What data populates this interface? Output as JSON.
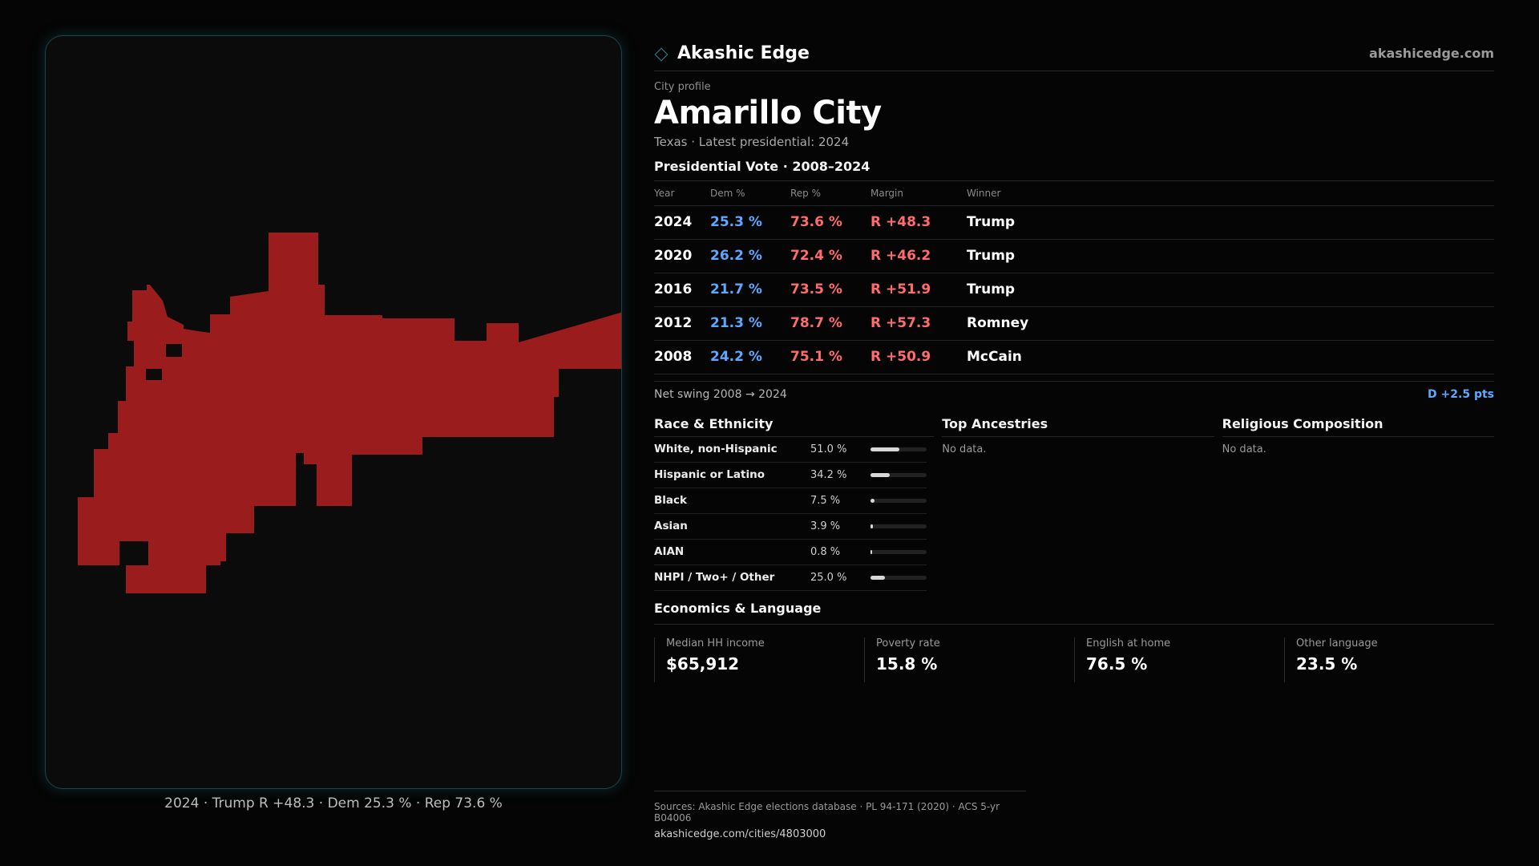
{
  "brand": {
    "name": "Akashic Edge",
    "domain": "akashicedge.com"
  },
  "profile": {
    "eyebrow": "City profile",
    "city": "Amarillo City",
    "subtitle": "Texas · Latest presidential: 2024"
  },
  "map": {
    "caption": "2024 · Trump R +48.3 · Dem 25.3 % · Rep 73.6 %",
    "fill_color": "#9a1c1c"
  },
  "votes": {
    "title": "Presidential Vote · 2008–2024",
    "headers": {
      "year": "Year",
      "dem": "Dem %",
      "rep": "Rep %",
      "margin": "Margin",
      "winner": "Winner"
    },
    "rows": [
      {
        "year": "2024",
        "dem": "25.3 %",
        "rep": "73.6 %",
        "margin": "R +48.3",
        "winner": "Trump"
      },
      {
        "year": "2020",
        "dem": "26.2 %",
        "rep": "72.4 %",
        "margin": "R +46.2",
        "winner": "Trump"
      },
      {
        "year": "2016",
        "dem": "21.7 %",
        "rep": "73.5 %",
        "margin": "R +51.9",
        "winner": "Trump"
      },
      {
        "year": "2012",
        "dem": "21.3 %",
        "rep": "78.7 %",
        "margin": "R +57.3",
        "winner": "Romney"
      },
      {
        "year": "2008",
        "dem": "24.2 %",
        "rep": "75.1 %",
        "margin": "R +50.9",
        "winner": "McCain"
      }
    ],
    "swing_label": "Net swing 2008 → 2024",
    "swing_value": "D +2.5 pts"
  },
  "race": {
    "title": "Race & Ethnicity",
    "rows": [
      {
        "label": "White, non-Hispanic",
        "value": "51.0 %",
        "fraction": 0.51
      },
      {
        "label": "Hispanic or Latino",
        "value": "34.2 %",
        "fraction": 0.342
      },
      {
        "label": "Black",
        "value": "7.5 %",
        "fraction": 0.075
      },
      {
        "label": "Asian",
        "value": "3.9 %",
        "fraction": 0.039
      },
      {
        "label": "AIAN",
        "value": "0.8 %",
        "fraction": 0.008
      },
      {
        "label": "NHPI / Two+ / Other",
        "value": "25.0 %",
        "fraction": 0.25
      }
    ]
  },
  "ancestries": {
    "title": "Top Ancestries",
    "empty": "No data."
  },
  "religion": {
    "title": "Religious Composition",
    "empty": "No data."
  },
  "economics": {
    "title": "Economics & Language",
    "cells": [
      {
        "label": "Median HH income",
        "value": "$65,912"
      },
      {
        "label": "Poverty rate",
        "value": "15.8 %"
      },
      {
        "label": "English at home",
        "value": "76.5 %"
      },
      {
        "label": "Other language",
        "value": "23.5 %"
      }
    ]
  },
  "footer": {
    "sources": "Sources: Akashic Edge elections database · PL 94-171 (2020) · ACS 5-yr B04006",
    "url": "akashicedge.com/cities/4803000"
  }
}
